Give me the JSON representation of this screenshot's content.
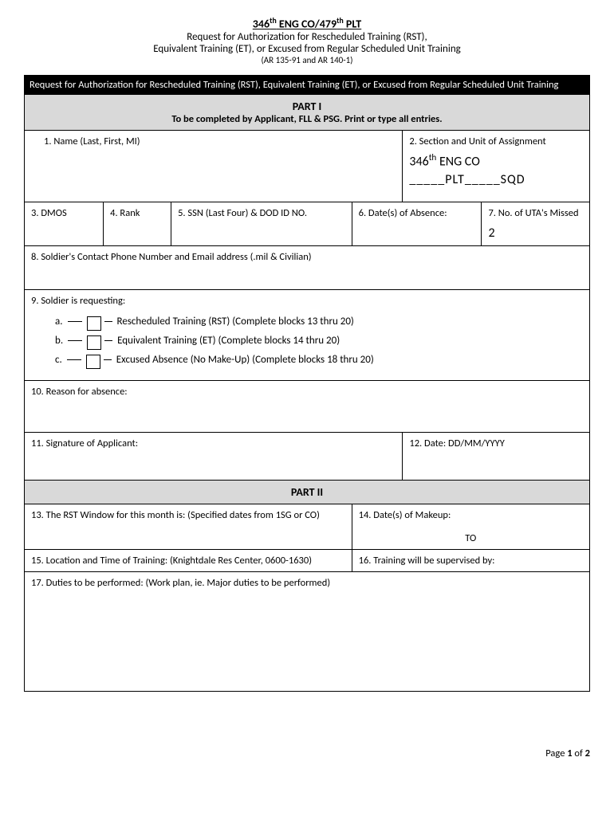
{
  "header": {
    "title_html": "346<sup>th</sup> ENG CO/479<sup>th</sup> PLT",
    "line1": "Request for Authorization for Rescheduled Training (RST),",
    "line2": "Equivalent Training (ET), or Excused from Regular Scheduled Unit Training",
    "ref": "(AR 135-91 and AR 140-1)"
  },
  "black_bar": "Request for Authorization for Rescheduled Training (RST), Equivalent Training (ET), or Excused from Regular Scheduled Unit Training",
  "part1": {
    "title": "PART I",
    "subtitle": "To be completed by Applicant, FLL & PSG. Print or type all entries.",
    "f1": "1.    Name (Last, First, MI)",
    "f2": "2. Section and Unit of Assignment",
    "f2_unit_html": "346<sup>th</sup> ENG CO",
    "f2_blank": "_____PLT_____SQD",
    "f3": "3. DMOS",
    "f4": "4. Rank",
    "f5": "5. SSN (Last Four) & DOD ID NO.",
    "f6": "6. Date(s) of Absence:",
    "f7": "7. No. of UTA's Missed",
    "f7_val": "2",
    "f8": "8. Soldier's Contact Phone Number and Email address (.mil & Civilian)",
    "f9": "9. Soldier is requesting:",
    "f9a": "Rescheduled Training (RST) (Complete blocks 13 thru 20)",
    "f9b": "Equivalent Training (ET) (Complete blocks 14 thru 20)",
    "f9c": "Excused Absence (No Make-Up) (Complete blocks 18 thru 20)",
    "f10": "10. Reason for absence:",
    "f11": "11. Signature of Applicant:",
    "f12": "12. Date: DD/MM/YYYY"
  },
  "part2": {
    "title": "PART II",
    "f13": "13. The RST Window for this month is: (Specified dates from 1SG or CO)",
    "f14": "14. Date(s) of Makeup:",
    "f14_to": "TO",
    "f15": "15. Location and Time of Training: (Knightdale Res Center, 0600-1630)",
    "f16": "16. Training will be supervised by:",
    "f17": "17. Duties to be performed: (Work plan, ie. Major duties to be performed)"
  },
  "footer": {
    "page_html": "Page <b>1</b> of <b>2</b>"
  }
}
